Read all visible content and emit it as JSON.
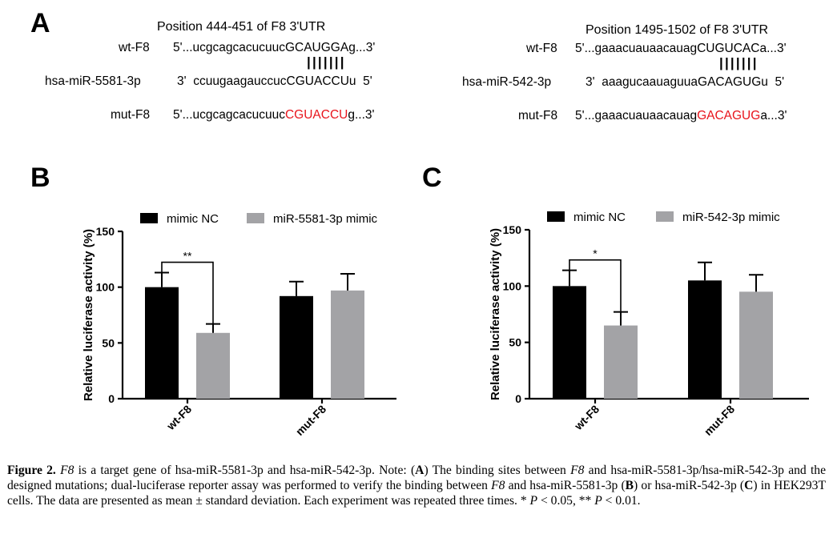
{
  "panel_a": {
    "letter": "A",
    "left": {
      "position_title": "Position 444-451 of F8 3'UTR",
      "wt_label": "wt-F8",
      "wt_seq_plain": "5'...ucgcagcacucuuc",
      "wt_seq_site": "GCAUGGA",
      "wt_seq_end": "g...3'",
      "pairing": "|||||||",
      "mir_label": "hsa-miR-5581-3p",
      "mir_seq_start": "3'  ccuugaagauccuc",
      "mir_seq_site": "CGUACCU",
      "mir_seq_end": "u  5'",
      "mut_label": "mut-F8",
      "mut_seq_plain": "5'...ucgcagcacucuuc",
      "mut_seq_site": "CGUACCU",
      "mut_seq_end": "g...3'"
    },
    "right": {
      "position_title": "Position 1495-1502 of F8 3'UTR",
      "wt_label": "wt-F8",
      "wt_seq_plain": "5'...gaaacuauaacauag",
      "wt_seq_site": "CUGUCAC",
      "wt_seq_end": "a...3'",
      "pairing": "|||||||",
      "mir_label": "hsa-miR-542-3p",
      "mir_seq_start": "3'  aaagucaauaguua",
      "mir_seq_site": "GACAGUG",
      "mir_seq_end": "u  5'",
      "mut_label": "mut-F8",
      "mut_seq_plain": "5'...gaaacuauaacauag",
      "mut_seq_site": "GACAGUG",
      "mut_seq_end": "a...3'"
    }
  },
  "colors": {
    "mimic_nc": "#000000",
    "mimic": "#a3a3a6",
    "mutation_highlight": "#e8141c"
  },
  "chart_data": [
    {
      "panel": "B",
      "type": "bar",
      "ylabel": "Relative luciferase activity (%)",
      "ylim": [
        0,
        150
      ],
      "yticks": [
        "0",
        "50",
        "100",
        "150"
      ],
      "categories": [
        "wt-F8",
        "mut-F8"
      ],
      "series": [
        {
          "name": "mimic NC",
          "values": [
            100,
            92
          ],
          "errors": [
            13,
            13
          ]
        },
        {
          "name": "miR-5581-3p mimic",
          "values": [
            59,
            97
          ],
          "errors": [
            8,
            15
          ]
        }
      ],
      "significance": "**",
      "legend": "top"
    },
    {
      "panel": "C",
      "type": "bar",
      "ylabel": "Relative luciferase activity (%)",
      "ylim": [
        0,
        150
      ],
      "yticks": [
        "0",
        "50",
        "100",
        "150"
      ],
      "categories": [
        "wt-F8",
        "mut-F8"
      ],
      "series": [
        {
          "name": "mimic NC",
          "values": [
            100,
            105
          ],
          "errors": [
            14,
            16
          ]
        },
        {
          "name": "miR-542-3p mimic",
          "values": [
            65,
            95
          ],
          "errors": [
            12,
            15
          ]
        }
      ],
      "significance": "*",
      "legend": "top"
    }
  ],
  "caption": {
    "figure_label": "Figure 2.",
    "gene": "F8",
    "s1": " is a target gene of hsa-miR-5581-3p and hsa-miR-542-3p. Note: (",
    "a_letter": "A",
    "s2": ") The binding sites between ",
    "s3": " and hsa-miR-5581-3p/hsa-miR-542-3p and the designed mutations; dual-luciferase reporter assay was performed to verify the binding between ",
    "s4": " and hsa-miR-5581-3p (",
    "b_letter": "B",
    "s5": ") or hsa-miR-542-3p (",
    "c_letter": "C",
    "s6": ") in HEK293T cells. The data are presented as mean ± standard deviation. Each experiment was repeated three times. * ",
    "p_letter": "P",
    "s7": " < 0.05, ** ",
    "s8": " < 0.01."
  }
}
